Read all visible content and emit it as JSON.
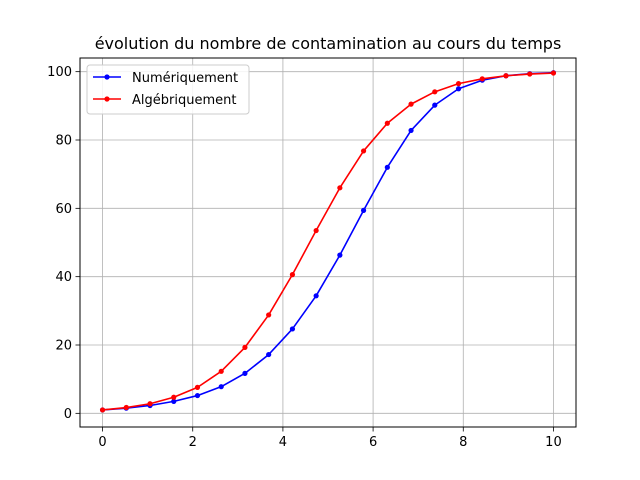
{
  "chart_data": {
    "type": "line",
    "title": "évolution du nombre de contamination au cours du temps",
    "xlabel": "",
    "ylabel": "",
    "xlim": [
      -0.5,
      10.5
    ],
    "ylim": [
      -4,
      104
    ],
    "xticks": [
      0,
      2,
      4,
      6,
      8,
      10
    ],
    "yticks": [
      0,
      20,
      40,
      60,
      80,
      100
    ],
    "xtick_labels": [
      "0",
      "2",
      "4",
      "6",
      "8",
      "10"
    ],
    "ytick_labels": [
      "0",
      "20",
      "40",
      "60",
      "80",
      "100"
    ],
    "grid": true,
    "legend_position": "upper-left",
    "x": [
      0,
      0.526,
      1.053,
      1.579,
      2.105,
      2.632,
      3.158,
      3.684,
      4.211,
      4.737,
      5.263,
      5.789,
      6.316,
      6.842,
      7.368,
      7.895,
      8.421,
      8.947,
      9.474,
      10
    ],
    "series": [
      {
        "name": "Numériquement",
        "color": "#0000ff",
        "values": [
          1.0,
          1.5,
          2.3,
          3.5,
          5.2,
          7.8,
          11.7,
          17.2,
          24.7,
          34.4,
          46.3,
          59.4,
          72.0,
          82.8,
          90.2,
          95.0,
          97.5,
          98.8,
          99.4,
          99.7
        ]
      },
      {
        "name": "Algébriquement",
        "color": "#ff0000",
        "values": [
          1.0,
          1.7,
          2.8,
          4.7,
          7.6,
          12.3,
          19.3,
          28.8,
          40.6,
          53.5,
          66.0,
          76.8,
          84.9,
          90.5,
          94.1,
          96.5,
          97.9,
          98.8,
          99.3,
          99.6
        ]
      }
    ]
  }
}
